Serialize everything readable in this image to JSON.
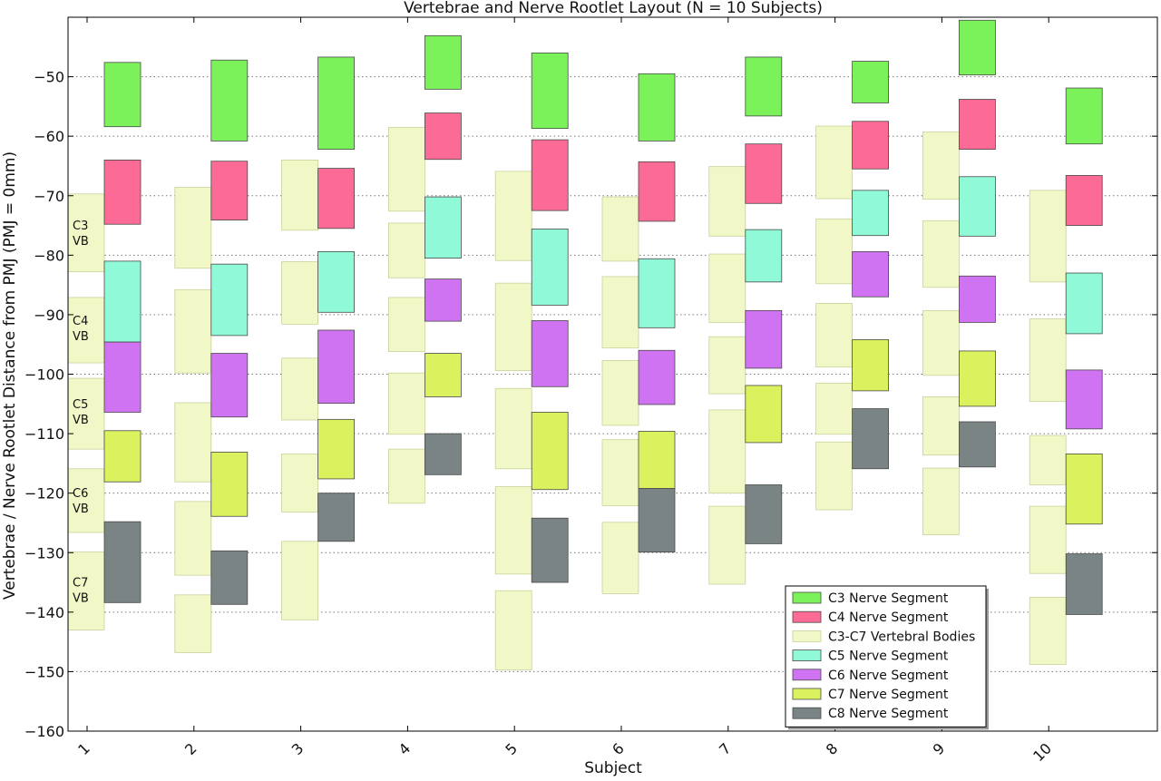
{
  "chart_data": {
    "type": "bar",
    "title": "Vertebrae and Nerve Rootlet Layout (N = 10 Subjects)",
    "xlabel": "Subject",
    "ylabel": "Vertebrae / Nerve Rootlet Distance from PMJ (PMJ = 0mm)",
    "categories": [
      "1",
      "2",
      "3",
      "4",
      "5",
      "6",
      "7",
      "8",
      "9",
      "10"
    ],
    "ylim": [
      -160,
      -40
    ],
    "yticks": [
      -50,
      -60,
      -70,
      -80,
      -90,
      -100,
      -110,
      -120,
      -130,
      -140,
      -150,
      -160
    ],
    "grid": true,
    "legend_position": "bottom-right",
    "colors": {
      "C3": "#7cf25a",
      "C4": "#fb6b95",
      "VB": "#f1f7c7",
      "C5": "#8ff9d8",
      "C6": "#cf73f2",
      "C7": "#dbf25e",
      "C8": "#7a8485"
    },
    "legend": [
      {
        "key": "C3",
        "label": "C3  Nerve Segment"
      },
      {
        "key": "C4",
        "label": "C4  Nerve Segment"
      },
      {
        "key": "VB",
        "label": "C3-C7 Vertebral Bodies"
      },
      {
        "key": "C5",
        "label": "C5  Nerve Segment"
      },
      {
        "key": "C6",
        "label": "C6  Nerve Segment"
      },
      {
        "key": "C7",
        "label": "C7  Nerve Segment"
      },
      {
        "key": "C8",
        "label": "C8  Nerve Segment"
      }
    ],
    "vertebral_body_labels": [
      {
        "line1": "C3",
        "line2": "VB",
        "level": -76
      },
      {
        "line1": "C4",
        "line2": "VB",
        "level": -92
      },
      {
        "line1": "C5",
        "line2": "VB",
        "level": -106
      },
      {
        "line1": "C6",
        "line2": "VB",
        "level": -121
      },
      {
        "line1": "C7",
        "line2": "VB",
        "level": -136
      }
    ],
    "vertebral_bodies": [
      [
        [
          -69.7,
          -82.8
        ],
        [
          -87.1,
          -98.1
        ],
        [
          -100.7,
          -112.6
        ],
        [
          -115.9,
          -126.6
        ],
        [
          -129.9,
          -143.0
        ]
      ],
      [
        [
          -68.6,
          -82.2
        ],
        [
          -85.8,
          -99.8
        ],
        [
          -104.8,
          -118.1
        ],
        [
          -121.4,
          -133.8
        ],
        [
          -137.1,
          -146.8
        ]
      ],
      [
        [
          -64.0,
          -75.8
        ],
        [
          -81.1,
          -91.6
        ],
        [
          -97.3,
          -107.7
        ],
        [
          -113.4,
          -123.2
        ],
        [
          -128.1,
          -141.3
        ]
      ],
      [
        [
          -58.5,
          -72.6
        ],
        [
          -74.6,
          -83.8
        ],
        [
          -87.1,
          -96.2
        ],
        [
          -99.8,
          -110.1
        ],
        [
          -112.6,
          -121.7
        ]
      ],
      [
        [
          -65.9,
          -80.9
        ],
        [
          -84.7,
          -99.4
        ],
        [
          -102.4,
          -115.9
        ],
        [
          -118.9,
          -133.6
        ],
        [
          -136.4,
          -149.7
        ]
      ],
      [
        [
          -70.2,
          -81.0
        ],
        [
          -83.6,
          -95.6
        ],
        [
          -97.7,
          -108.6
        ],
        [
          -111.0,
          -122.1
        ],
        [
          -124.9,
          -136.9
        ]
      ],
      [
        [
          -65.1,
          -76.8
        ],
        [
          -79.8,
          -91.3
        ],
        [
          -93.7,
          -103.3
        ],
        [
          -106.0,
          -120.0
        ],
        [
          -122.2,
          -135.3
        ]
      ],
      [
        [
          -58.3,
          -70.5
        ],
        [
          -73.9,
          -84.8
        ],
        [
          -88.1,
          -98.8
        ],
        [
          -101.5,
          -110.1
        ],
        [
          -111.4,
          -122.8
        ]
      ],
      [
        [
          -59.3,
          -70.6
        ],
        [
          -74.2,
          -85.4
        ],
        [
          -89.3,
          -100.2
        ],
        [
          -103.8,
          -113.6
        ],
        [
          -115.8,
          -127.0
        ]
      ],
      [
        [
          -69.1,
          -84.5
        ],
        [
          -90.7,
          -104.6
        ],
        [
          -110.3,
          -118.6
        ],
        [
          -122.2,
          -133.5
        ],
        [
          -137.5,
          -148.8
        ]
      ]
    ],
    "series": [
      {
        "name": "C3  Nerve Segment",
        "key": "C3",
        "values": [
          [
            -47.6,
            -58.4
          ],
          [
            -47.2,
            -60.8
          ],
          [
            -46.7,
            -62.2
          ],
          [
            -43.1,
            -52.1
          ],
          [
            -46.0,
            -58.7
          ],
          [
            -49.5,
            -60.8
          ],
          [
            -46.7,
            -56.6
          ],
          [
            -47.4,
            -54.4
          ],
          [
            -40.5,
            -49.7
          ],
          [
            -51.9,
            -61.3
          ]
        ]
      },
      {
        "name": "C4  Nerve Segment",
        "key": "C4",
        "values": [
          [
            -64.0,
            -74.8
          ],
          [
            -64.2,
            -74.1
          ],
          [
            -65.4,
            -75.5
          ],
          [
            -56.1,
            -63.9
          ],
          [
            -60.6,
            -72.5
          ],
          [
            -64.3,
            -74.3
          ],
          [
            -61.3,
            -71.3
          ],
          [
            -57.5,
            -65.5
          ],
          [
            -53.8,
            -62.2
          ],
          [
            -66.6,
            -75.0
          ]
        ]
      },
      {
        "name": "C5  Nerve Segment",
        "key": "C5",
        "values": [
          [
            -81.0,
            -94.6
          ],
          [
            -81.5,
            -93.5
          ],
          [
            -79.4,
            -89.6
          ],
          [
            -70.2,
            -80.5
          ],
          [
            -75.6,
            -88.4
          ],
          [
            -80.6,
            -92.2
          ],
          [
            -75.7,
            -84.5
          ],
          [
            -69.1,
            -76.7
          ],
          [
            -66.8,
            -76.8
          ],
          [
            -83.0,
            -93.2
          ]
        ]
      },
      {
        "name": "C6  Nerve Segment",
        "key": "C6",
        "values": [
          [
            -94.6,
            -106.4
          ],
          [
            -96.5,
            -107.2
          ],
          [
            -92.6,
            -104.9
          ],
          [
            -84.0,
            -91.1
          ],
          [
            -91.0,
            -102.1
          ],
          [
            -96.0,
            -105.1
          ],
          [
            -89.3,
            -99.0
          ],
          [
            -79.4,
            -87.0
          ],
          [
            -83.5,
            -91.3
          ],
          [
            -99.3,
            -109.2
          ]
        ]
      },
      {
        "name": "C7  Nerve Segment",
        "key": "C7",
        "values": [
          [
            -109.5,
            -118.1
          ],
          [
            -113.1,
            -123.9
          ],
          [
            -107.6,
            -117.6
          ],
          [
            -96.5,
            -103.8
          ],
          [
            -106.4,
            -119.4
          ],
          [
            -109.6,
            -119.2
          ],
          [
            -101.9,
            -111.5
          ],
          [
            -94.2,
            -102.8
          ],
          [
            -96.1,
            -105.4
          ],
          [
            -113.4,
            -125.2
          ]
        ]
      },
      {
        "name": "C8  Nerve Segment",
        "key": "C8",
        "values": [
          [
            -124.8,
            -138.4
          ],
          [
            -129.7,
            -138.7
          ],
          [
            -120.0,
            -128.1
          ],
          [
            -110.0,
            -116.9
          ],
          [
            -124.2,
            -135.0
          ],
          [
            -119.2,
            -129.9
          ],
          [
            -118.6,
            -128.5
          ],
          [
            -105.8,
            -115.9
          ],
          [
            -108.0,
            -115.6
          ],
          [
            -130.2,
            -140.4
          ]
        ]
      }
    ]
  }
}
